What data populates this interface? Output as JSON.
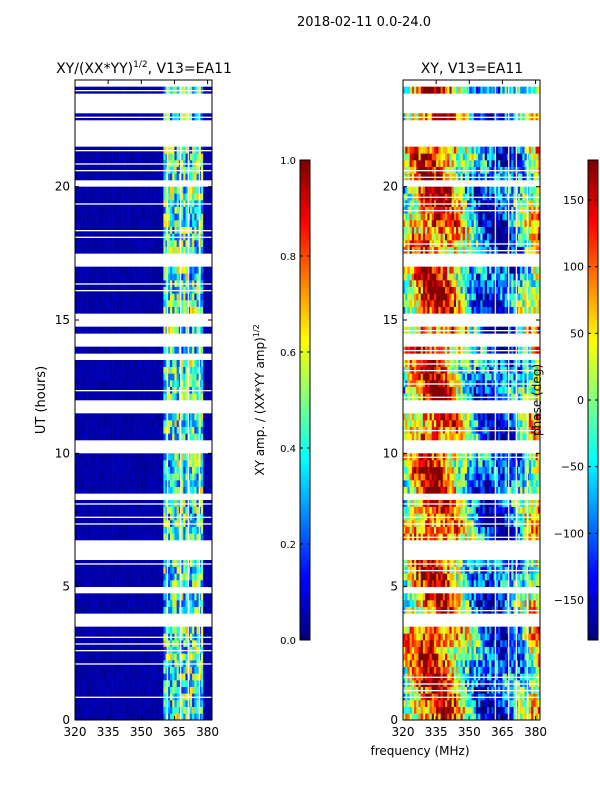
{
  "figure_title": "2018-02-11 0.0-24.0",
  "x_axis_shared_label": "frequency (MHz)",
  "colors": {
    "background_missing": "#ffffff",
    "low_amp": "#00007f",
    "frame": "#000000"
  },
  "chart_data": [
    {
      "type": "heatmap",
      "id": "amp",
      "title_main": "XY/(XX*YY)",
      "title_exp": "1/2",
      "title_tail": ", V13=EA11",
      "xlabel": "",
      "ylabel": "UT (hours)",
      "xlim": [
        320,
        382
      ],
      "ylim": [
        0,
        24
      ],
      "xticks": [
        320,
        335,
        350,
        365,
        380
      ],
      "yticks": [
        0,
        5,
        10,
        15,
        20
      ],
      "colormap": "jet",
      "colorbar": {
        "label_main": "XY amp. / (XX*YY amp)",
        "label_exp": "1/2",
        "vmin": 0.0,
        "vmax": 1.0,
        "ticks": [
          "0.0",
          "0.2",
          "0.4",
          "0.6",
          "0.8",
          "1.0"
        ],
        "tick_values": [
          0.0,
          0.2,
          0.4,
          0.6,
          0.8,
          1.0
        ]
      },
      "freq_band_MHz": [
        360,
        378
      ],
      "gaps_UT": [
        [
          22.0,
          22.5
        ],
        [
          14.2,
          14.5
        ],
        [
          6.2,
          6.5
        ]
      ],
      "min_value": 0.0,
      "max_value": 1.0
    },
    {
      "type": "heatmap",
      "id": "phase",
      "title": "XY, V13=EA11",
      "xlabel": "",
      "ylabel": "",
      "xlim": [
        320,
        382
      ],
      "ylim": [
        0,
        24
      ],
      "xticks": [
        320,
        335,
        350,
        365,
        380
      ],
      "yticks": [
        0,
        5,
        10,
        15,
        20
      ],
      "colormap": "jet",
      "colorbar": {
        "label": "phase (deg)",
        "vmin": -180,
        "vmax": 180,
        "ticks": [
          "−150",
          "−100",
          "−50",
          "0",
          "50",
          "100",
          "150"
        ],
        "tick_values": [
          -150,
          -100,
          -50,
          0,
          50,
          100,
          150
        ]
      },
      "gaps_UT": [
        [
          22.0,
          22.5
        ],
        [
          14.2,
          14.5
        ],
        [
          6.2,
          6.5
        ]
      ],
      "min_value": -180,
      "max_value": 180
    }
  ]
}
